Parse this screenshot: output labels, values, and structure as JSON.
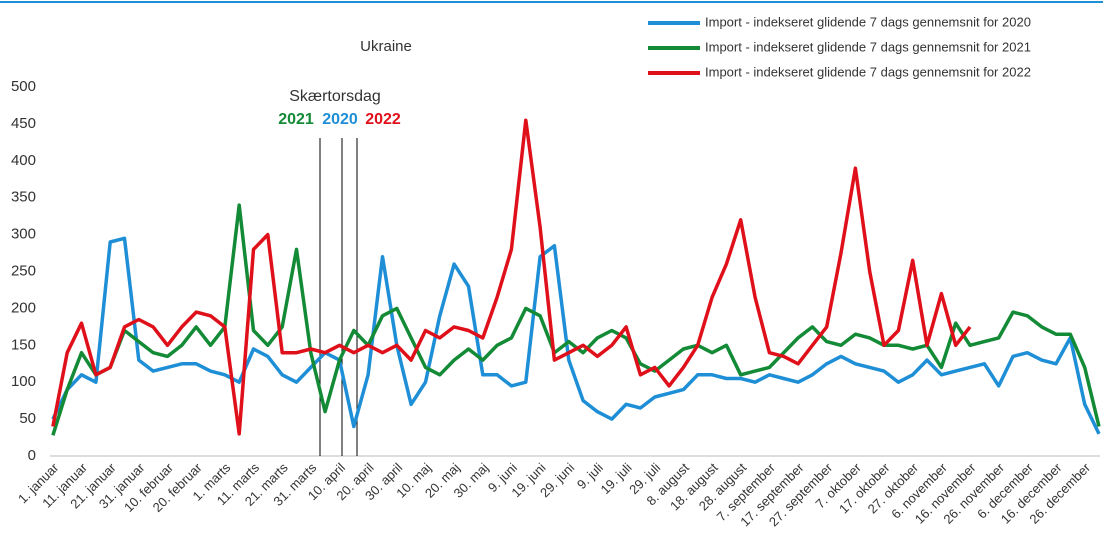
{
  "chart_data": {
    "type": "line",
    "title": "Ukraine",
    "categories": [
      "1. januar",
      null,
      "11. januar",
      null,
      "21. januar",
      null,
      "31. januar",
      null,
      "10. februar",
      null,
      "20. februar",
      null,
      "1. marts",
      null,
      "11. marts",
      null,
      "21. marts",
      null,
      "31. marts",
      null,
      "10. april",
      null,
      "20. april",
      null,
      "30. april",
      null,
      "10. maj",
      null,
      "20. maj",
      null,
      "30. maj",
      null,
      "9. juni",
      null,
      "19. juni",
      null,
      "29. juni",
      null,
      "9. juli",
      null,
      "19. juli",
      null,
      "29. juli",
      null,
      "8. august",
      null,
      "18. august",
      null,
      "28. august",
      null,
      "7. september",
      null,
      "17. september",
      null,
      "27. september",
      null,
      "7. oktober",
      null,
      "17. oktober",
      null,
      "27. oktober",
      null,
      "6. november",
      null,
      "16. november",
      null,
      "26. november",
      null,
      "6. december",
      null,
      "16. december",
      null,
      "26. december",
      null
    ],
    "series": [
      {
        "name": "Import - indekseret glidende 7 dags gennemsnit for 2020",
        "color": "#1e8fd6",
        "values": [
          50,
          90,
          110,
          100,
          290,
          295,
          130,
          115,
          120,
          125,
          125,
          115,
          110,
          100,
          145,
          135,
          110,
          100,
          120,
          140,
          130,
          40,
          110,
          270,
          150,
          70,
          100,
          190,
          260,
          230,
          110,
          110,
          95,
          100,
          270,
          285,
          130,
          75,
          60,
          50,
          70,
          65,
          80,
          85,
          90,
          110,
          110,
          105,
          105,
          100,
          110,
          105,
          100,
          110,
          125,
          135,
          125,
          120,
          115,
          100,
          110,
          130,
          110,
          115,
          120,
          125,
          95,
          135,
          140,
          130,
          125,
          160,
          70,
          30
        ]
      },
      {
        "name": "Import - indekseret glidende 7 dags gennemsnit for 2021",
        "color": "#138a36",
        "values": [
          28,
          90,
          140,
          110,
          120,
          170,
          155,
          140,
          135,
          150,
          175,
          150,
          175,
          340,
          170,
          150,
          175,
          280,
          140,
          60,
          130,
          170,
          150,
          190,
          200,
          160,
          120,
          110,
          130,
          145,
          130,
          150,
          160,
          200,
          190,
          140,
          155,
          140,
          160,
          170,
          160,
          125,
          115,
          130,
          145,
          150,
          140,
          150,
          110,
          115,
          120,
          140,
          160,
          175,
          155,
          150,
          165,
          160,
          150,
          150,
          145,
          150,
          120,
          180,
          150,
          155,
          160,
          195,
          190,
          175,
          165,
          165,
          120,
          40
        ]
      },
      {
        "name": "Import - indekseret glidende 7 dags gennemsnit for 2022",
        "color": "#e0101a",
        "values": [
          40,
          140,
          180,
          110,
          120,
          175,
          185,
          175,
          150,
          175,
          195,
          190,
          175,
          30,
          280,
          300,
          140,
          140,
          145,
          140,
          150,
          140,
          150,
          140,
          150,
          130,
          170,
          160,
          175,
          170,
          160,
          215,
          280,
          455,
          310,
          130,
          140,
          150,
          135,
          150,
          175,
          110,
          120,
          95,
          120,
          150,
          215,
          260,
          320,
          215,
          140,
          135,
          125,
          150,
          175,
          275,
          390,
          250,
          150,
          170,
          265,
          150,
          220,
          150,
          175,
          null,
          null,
          null,
          null,
          null,
          null,
          null,
          null,
          null
        ]
      }
    ],
    "ylim": [
      0,
      500
    ],
    "yticks": [
      0,
      50,
      100,
      150,
      200,
      250,
      300,
      350,
      400,
      450,
      500
    ],
    "grid": false,
    "legend": "top-right",
    "annotation": {
      "text": "Skærtorsdag",
      "years": [
        {
          "label": "2021",
          "color": "#138a36"
        },
        {
          "label": "2020",
          "color": "#1e8fd6"
        },
        {
          "label": "2022",
          "color": "#e0101a"
        }
      ]
    }
  }
}
